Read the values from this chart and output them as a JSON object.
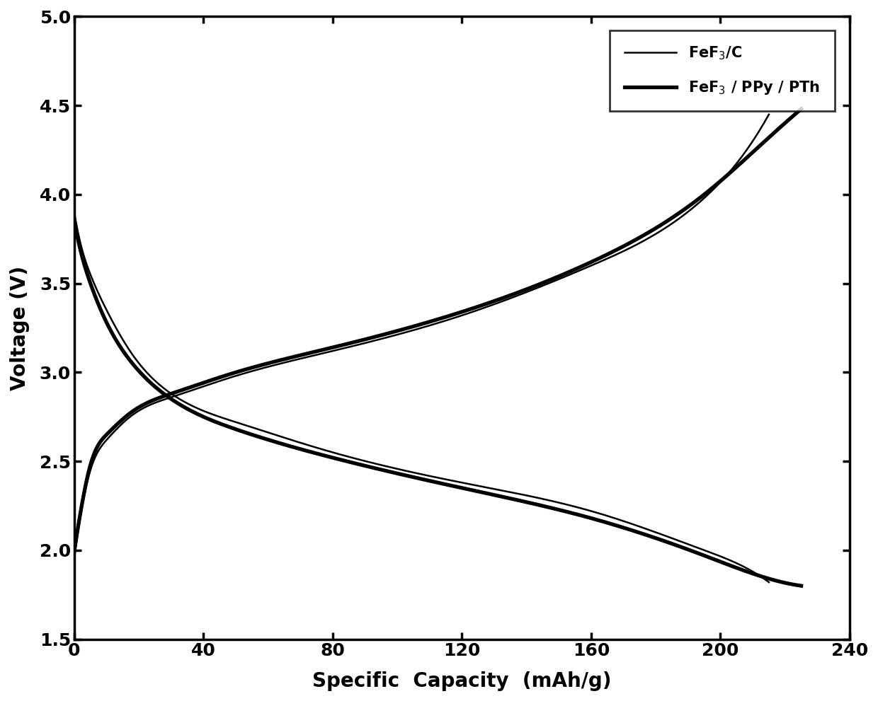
{
  "title": "",
  "xlabel": "Specific  Capacity  (mAh/g)",
  "ylabel": "Voltage (V)",
  "xlim": [
    0,
    240
  ],
  "ylim": [
    1.5,
    5.0
  ],
  "xticks": [
    0,
    40,
    80,
    120,
    160,
    200,
    240
  ],
  "yticks": [
    1.5,
    2.0,
    2.5,
    3.0,
    3.5,
    4.0,
    4.5,
    5.0
  ],
  "legend_labels": [
    "FeF$_3$/C",
    "FeF$_3$ / PPy / PTh"
  ],
  "line_color": "#000000",
  "background_color": "#ffffff",
  "xlabel_fontsize": 20,
  "ylabel_fontsize": 20,
  "tick_fontsize": 18,
  "legend_fontsize": 15,
  "lw_thin": 1.8,
  "lw_thick": 3.8,
  "discharge_thin_x": [
    0,
    2,
    5,
    10,
    18,
    30,
    50,
    80,
    120,
    160,
    195,
    210,
    215
  ],
  "discharge_thin_y": [
    3.9,
    3.72,
    3.55,
    3.35,
    3.1,
    2.88,
    2.72,
    2.55,
    2.38,
    2.22,
    2.0,
    1.88,
    1.82
  ],
  "discharge_thick_x": [
    0,
    2,
    5,
    10,
    18,
    30,
    50,
    80,
    120,
    160,
    195,
    215,
    225
  ],
  "discharge_thick_y": [
    3.85,
    3.68,
    3.5,
    3.28,
    3.05,
    2.85,
    2.68,
    2.52,
    2.35,
    2.18,
    1.97,
    1.84,
    1.8
  ],
  "charge_thin_x": [
    0,
    2,
    5,
    10,
    18,
    30,
    50,
    80,
    120,
    160,
    195,
    210,
    215
  ],
  "charge_thin_y": [
    1.95,
    2.2,
    2.45,
    2.62,
    2.76,
    2.86,
    2.98,
    3.12,
    3.32,
    3.6,
    3.98,
    4.3,
    4.45
  ],
  "charge_thick_x": [
    0,
    2,
    5,
    10,
    18,
    30,
    50,
    80,
    120,
    160,
    195,
    215,
    225
  ],
  "charge_thick_y": [
    2.0,
    2.22,
    2.48,
    2.65,
    2.78,
    2.88,
    3.0,
    3.14,
    3.34,
    3.62,
    4.0,
    4.32,
    4.48
  ]
}
